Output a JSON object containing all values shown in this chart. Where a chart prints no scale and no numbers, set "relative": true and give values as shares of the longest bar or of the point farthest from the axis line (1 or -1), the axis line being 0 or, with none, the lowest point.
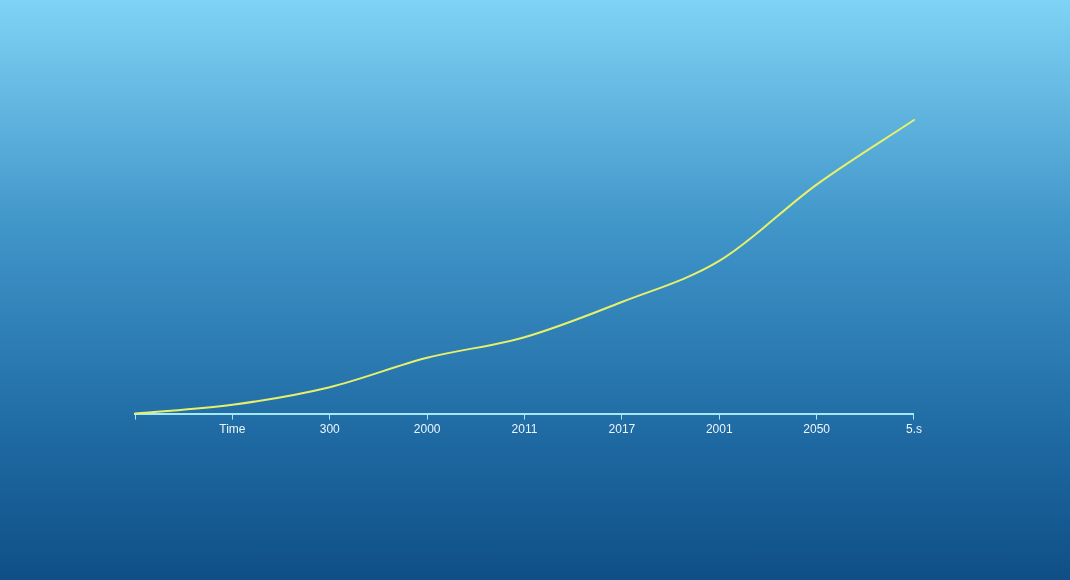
{
  "chart_data": {
    "type": "line",
    "relative": true,
    "categories": [
      null,
      "Time",
      "300",
      "2000",
      "2011",
      "2017",
      "2001",
      "2050",
      "5.s"
    ],
    "series": [
      {
        "color": "#e6f06a",
        "values": [
          0,
          0.03,
          0.09,
          0.19,
          0.26,
          0.38,
          0.52,
          0.78,
          1
        ]
      }
    ],
    "grid": false,
    "legend": false,
    "marker": "none",
    "line_style": "solid"
  }
}
